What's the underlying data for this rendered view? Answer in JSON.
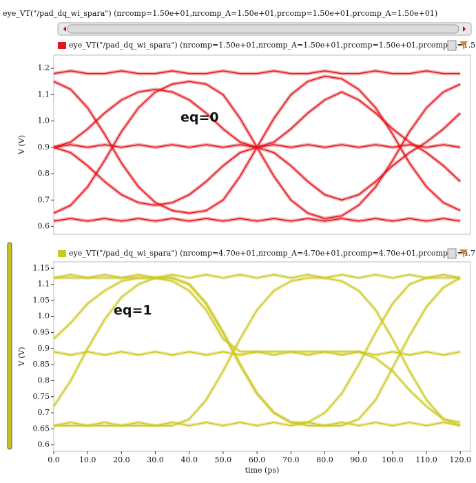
{
  "window_title": "eye_VT(\"/pad_dq_wi_spara\") (nrcomp=1.50e+01,nrcomp_A=1.50e+01,prcomp=1.50e+01,prcomp_A=1.50e+01)",
  "chart_data": [
    {
      "type": "line",
      "ylabel": "V (V)",
      "annotation": "eq=0",
      "x": [
        0,
        5,
        10,
        15,
        20,
        25,
        30,
        35,
        40,
        45,
        50,
        55,
        60,
        65,
        70,
        75,
        80,
        85,
        90,
        95,
        100,
        105,
        110,
        115,
        120
      ],
      "xlim": [
        0,
        123
      ],
      "ylim": [
        0.57,
        1.25
      ],
      "yticks": [
        {
          "value": 0.6,
          "label": "0.6"
        },
        0.7,
        0.8,
        0.9,
        {
          "value": 1.0,
          "label": "1.0"
        },
        1.1,
        1.2
      ],
      "series": [
        {
          "name": "eye_VT(\"/pad_dq_wi_spara\") (nrcomp=1.50e+01,nrcomp_A=1.50e+01,prcomp=1.50e+01,prcomp_A=1.5",
          "color": "#e3141b",
          "values": [
            [
              1.18,
              1.19,
              1.18,
              1.18,
              1.19,
              1.18,
              1.18,
              1.19,
              1.18,
              1.18,
              1.19,
              1.18,
              1.18,
              1.19,
              1.18,
              1.18,
              1.19,
              1.18,
              1.18,
              1.19,
              1.18,
              1.18,
              1.19,
              1.18,
              1.18
            ],
            [
              0.62,
              0.63,
              0.62,
              0.63,
              0.62,
              0.63,
              0.62,
              0.63,
              0.62,
              0.63,
              0.62,
              0.63,
              0.62,
              0.63,
              0.62,
              0.63,
              0.62,
              0.63,
              0.62,
              0.63,
              0.62,
              0.63,
              0.62,
              0.63,
              0.62
            ],
            [
              0.9,
              0.91,
              0.9,
              0.91,
              0.9,
              0.91,
              0.9,
              0.91,
              0.9,
              0.91,
              0.9,
              0.91,
              0.9,
              0.91,
              0.9,
              0.91,
              0.9,
              0.91,
              0.9,
              0.91,
              0.9,
              0.91,
              0.9,
              0.91,
              0.9
            ],
            [
              1.15,
              1.12,
              1.05,
              0.95,
              0.84,
              0.75,
              0.69,
              0.66,
              0.65,
              0.66,
              0.7,
              0.79,
              0.9,
              1.01,
              1.1,
              1.15,
              1.17,
              1.16,
              1.12,
              1.05,
              0.95,
              0.84,
              0.75,
              0.69,
              0.66
            ],
            [
              0.65,
              0.68,
              0.75,
              0.85,
              0.96,
              1.05,
              1.11,
              1.14,
              1.15,
              1.14,
              1.1,
              1.01,
              0.9,
              0.79,
              0.7,
              0.65,
              0.63,
              0.64,
              0.68,
              0.75,
              0.85,
              0.96,
              1.05,
              1.11,
              1.14
            ],
            [
              0.9,
              0.92,
              0.97,
              1.03,
              1.08,
              1.11,
              1.12,
              1.11,
              1.08,
              1.03,
              0.97,
              0.92,
              0.9,
              0.88,
              0.83,
              0.77,
              0.72,
              0.7,
              0.72,
              0.77,
              0.83,
              0.88,
              0.92,
              0.97,
              1.03
            ],
            [
              0.9,
              0.88,
              0.83,
              0.77,
              0.72,
              0.69,
              0.68,
              0.69,
              0.72,
              0.77,
              0.83,
              0.88,
              0.9,
              0.92,
              0.97,
              1.03,
              1.08,
              1.11,
              1.08,
              1.03,
              0.97,
              0.92,
              0.88,
              0.83,
              0.77
            ]
          ]
        }
      ]
    },
    {
      "type": "line",
      "ylabel": "V (V)",
      "annotation": "eq=1",
      "xlabel": "time (ps)",
      "x": [
        0,
        5,
        10,
        15,
        20,
        25,
        30,
        35,
        40,
        45,
        50,
        55,
        60,
        65,
        70,
        75,
        80,
        85,
        90,
        95,
        100,
        105,
        110,
        115,
        120
      ],
      "xlim": [
        0,
        123
      ],
      "ylim": [
        0.58,
        1.17
      ],
      "xticks": [
        {
          "value": 0,
          "label": "0.0"
        },
        {
          "value": 10,
          "label": "10.0"
        },
        {
          "value": 20,
          "label": "20.0"
        },
        {
          "value": 30,
          "label": "30.0"
        },
        {
          "value": 40,
          "label": "40.0"
        },
        {
          "value": 50,
          "label": "50.0"
        },
        {
          "value": 60,
          "label": "60.0"
        },
        {
          "value": 70,
          "label": "70.0"
        },
        {
          "value": 80,
          "label": "80.0"
        },
        {
          "value": 90,
          "label": "90.0"
        },
        {
          "value": 100,
          "label": "100.0"
        },
        {
          "value": 110,
          "label": "110.0"
        },
        {
          "value": 120,
          "label": "120.0"
        }
      ],
      "yticks": [
        0.6,
        0.65,
        0.7,
        0.75,
        0.8,
        0.85,
        0.9,
        0.95,
        {
          "value": 1.0,
          "label": "1.0"
        },
        1.05,
        1.1,
        1.15
      ],
      "series": [
        {
          "name": "eye_VT(\"/pad_dq_wi_spara\") (nrcomp=4.70e+01,nrcomp_A=4.70e+01,prcomp=4.70e+01,prcomp_A=4.7",
          "color": "#cbc81f",
          "values": [
            [
              1.12,
              1.13,
              1.12,
              1.13,
              1.12,
              1.13,
              1.12,
              1.13,
              1.12,
              1.13,
              1.12,
              1.13,
              1.12,
              1.13,
              1.12,
              1.13,
              1.12,
              1.13,
              1.12,
              1.13,
              1.12,
              1.13,
              1.12,
              1.13,
              1.12
            ],
            [
              0.66,
              0.67,
              0.66,
              0.67,
              0.66,
              0.67,
              0.66,
              0.67,
              0.66,
              0.67,
              0.66,
              0.67,
              0.66,
              0.67,
              0.66,
              0.67,
              0.66,
              0.67,
              0.66,
              0.67,
              0.66,
              0.67,
              0.66,
              0.67,
              0.66
            ],
            [
              0.89,
              0.88,
              0.89,
              0.88,
              0.89,
              0.88,
              0.89,
              0.88,
              0.89,
              0.88,
              0.89,
              0.88,
              0.89,
              0.88,
              0.89,
              0.88,
              0.89,
              0.88,
              0.89,
              0.88,
              0.89,
              0.88,
              0.89,
              0.88,
              0.89
            ],
            [
              1.12,
              1.12,
              1.12,
              1.12,
              1.12,
              1.12,
              1.12,
              1.12,
              1.1,
              1.04,
              0.95,
              0.85,
              0.76,
              0.7,
              0.67,
              0.66,
              0.66,
              0.66,
              0.68,
              0.74,
              0.84,
              0.94,
              1.03,
              1.09,
              1.12
            ],
            [
              0.72,
              0.8,
              0.9,
              0.99,
              1.06,
              1.1,
              1.12,
              1.12,
              1.1,
              1.04,
              0.95,
              0.85,
              0.76,
              0.7,
              0.67,
              0.67,
              0.7,
              0.76,
              0.85,
              0.95,
              1.04,
              1.1,
              1.12,
              1.12,
              1.12
            ],
            [
              0.66,
              0.66,
              0.66,
              0.66,
              0.66,
              0.66,
              0.66,
              0.66,
              0.68,
              0.74,
              0.83,
              0.93,
              1.02,
              1.08,
              1.11,
              1.12,
              1.12,
              1.11,
              1.08,
              1.02,
              0.93,
              0.83,
              0.74,
              0.68,
              0.66
            ],
            [
              0.93,
              0.98,
              1.04,
              1.08,
              1.11,
              1.12,
              1.12,
              1.11,
              1.08,
              1.02,
              0.93,
              0.89,
              0.89,
              0.89,
              0.89,
              0.89,
              0.89,
              0.89,
              0.89,
              0.87,
              0.83,
              0.77,
              0.72,
              0.68,
              0.67
            ]
          ]
        }
      ]
    }
  ]
}
